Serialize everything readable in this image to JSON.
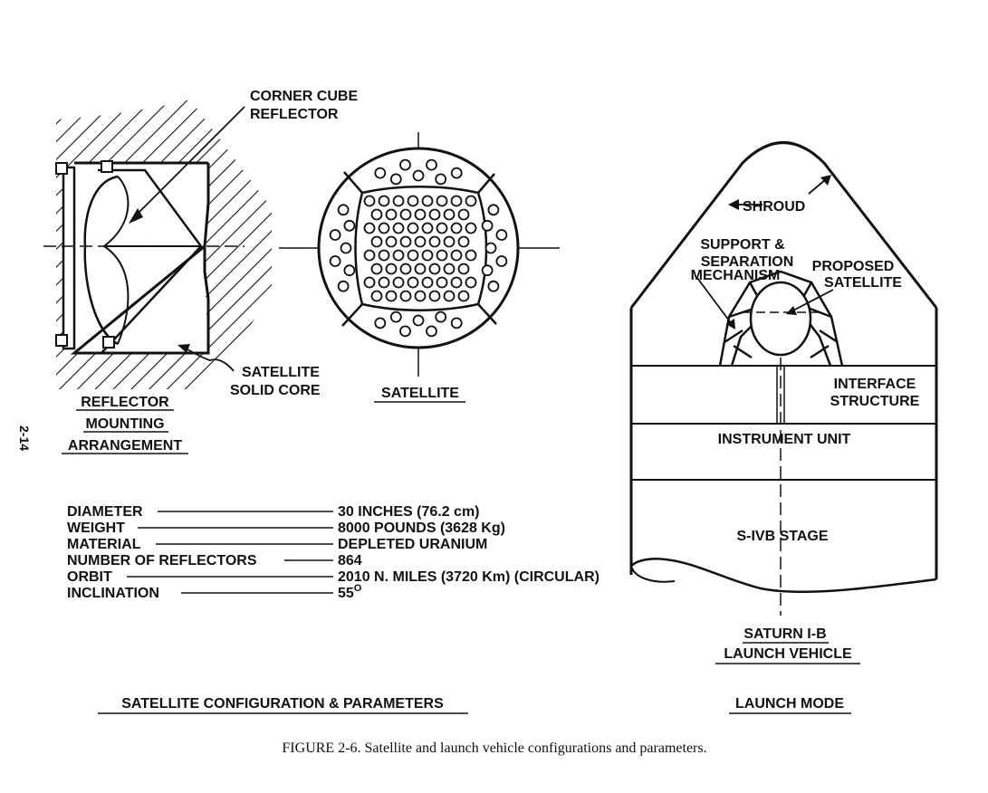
{
  "page_number": "2-14",
  "reflector": {
    "corner_cube_label": [
      "CORNER CUBE",
      "REFLECTOR"
    ],
    "solid_core_label": [
      "SATELLITE",
      "SOLID CORE"
    ],
    "title": [
      "REFLECTOR",
      "MOUNTING",
      "ARRANGEMENT"
    ]
  },
  "satellite": {
    "title": "SATELLITE"
  },
  "parameters": [
    {
      "name": "DIAMETER",
      "value": "30 INCHES (76.2 cm)"
    },
    {
      "name": "WEIGHT",
      "value": "8000 POUNDS (3628 Kg)"
    },
    {
      "name": "MATERIAL",
      "value": "DEPLETED URANIUM"
    },
    {
      "name": "NUMBER OF REFLECTORS",
      "value": "864"
    },
    {
      "name": "ORBIT",
      "value": "2010 N. MILES (3720 Km) (CIRCULAR)"
    },
    {
      "name": "INCLINATION",
      "value": "55",
      "superscript": "O"
    }
  ],
  "config_title": "SATELLITE CONFIGURATION & PARAMETERS",
  "vehicle": {
    "shroud": "SHROUD",
    "support": [
      "SUPPORT &",
      "SEPARATION",
      "MECHANISM"
    ],
    "proposed": [
      "PROPOSED",
      "SATELLITE"
    ],
    "interface": [
      "INTERFACE",
      "STRUCTURE"
    ],
    "instrument_unit": "INSTRUMENT UNIT",
    "stage": "S-IVB STAGE",
    "vehicle_title": [
      "SATURN I-B",
      "LAUNCH VEHICLE"
    ],
    "mode_title": "LAUNCH MODE"
  },
  "caption": "FIGURE 2-6.  Satellite and launch vehicle configurations and parameters."
}
